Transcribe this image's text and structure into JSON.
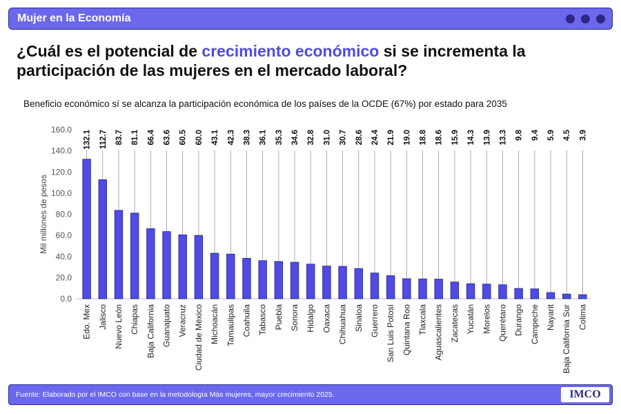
{
  "header": {
    "section_label": "Mujer en la Economía"
  },
  "headline": {
    "part1": "¿Cuál es el potencial de ",
    "highlight": "crecimiento económico",
    "part2": " si se incrementa la participación de las mujeres en el mercado laboral?"
  },
  "colors": {
    "bar": "#4f4be6",
    "bar_border": "#2a2680",
    "header_bg": "#6b68ee",
    "dots": "#2c2785",
    "highlight": "#4f4be0"
  },
  "chart_data": {
    "type": "bar",
    "title": "Beneficio económico sí se alcanza la participación económica de los países de la OCDE (67%) por estado para 2035",
    "ylabel": "Mil millones de pesos",
    "xlabel": "",
    "ylim": [
      0,
      160
    ],
    "yticks": [
      "0.0",
      "20.0",
      "40.0",
      "60.0",
      "80.0",
      "100.0",
      "120.0",
      "140.0",
      "160.0"
    ],
    "grid": false,
    "categories": [
      "Edo. Mex",
      "Jalisco",
      "Nuevo León",
      "Chiapas",
      "Baja California",
      "Guanajuato",
      "Veracruz",
      "Ciudad de México",
      "Michoacán",
      "Tamaulipas",
      "Coahuila",
      "Tabasco",
      "Puebla",
      "Sonora",
      "Hidalgo",
      "Oaxaca",
      "Chihuahua",
      "Sinaloa",
      "Guerrero",
      "San Luis Potosí",
      "Quintana Roo",
      "Tlaxcala",
      "Aguascalientes",
      "Zacatecas",
      "Yucatán",
      "Morelos",
      "Querétaro",
      "Durango",
      "Campeche",
      "Nayarit",
      "Baja California Sur",
      "Colima"
    ],
    "values": [
      132.1,
      112.7,
      83.7,
      81.1,
      66.4,
      63.6,
      60.5,
      60.0,
      43.1,
      42.3,
      38.3,
      36.1,
      35.3,
      34.6,
      32.8,
      31.0,
      30.7,
      28.6,
      24.4,
      21.9,
      19.0,
      18.8,
      18.6,
      15.9,
      14.3,
      13.9,
      13.3,
      9.8,
      9.4,
      5.9,
      4.5,
      3.9
    ],
    "value_labels": [
      "132.1",
      "112.7",
      "83.7",
      "81.1",
      "66.4",
      "63.6",
      "60.5",
      "60.0",
      "43.1",
      "42.3",
      "38.3",
      "36.1",
      "35.3",
      "34.6",
      "32.8",
      "31.0",
      "30.7",
      "28.6",
      "24.4",
      "21.9",
      "19.0",
      "18.8",
      "18.6",
      "15.9",
      "14.3",
      "13.9",
      "13.3",
      "9.8",
      "9.4",
      "5.9",
      "4.5",
      "3.9"
    ]
  },
  "footer": {
    "source": "Fuente: Elaborado por el IMCO con base en la metodología  Más mujeres, mayor crecimiento 2025.",
    "logo_text": "IMCO"
  }
}
